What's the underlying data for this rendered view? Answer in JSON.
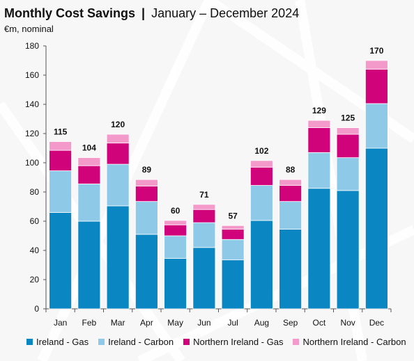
{
  "header": {
    "title_main": "Monthly Cost Savings",
    "title_separator": "|",
    "title_period": "January – December 2024",
    "unit": "€m, nominal"
  },
  "colors": {
    "ireland_gas": "#0a86c2",
    "ireland_carbon": "#8ecae8",
    "ni_gas": "#d0037a",
    "ni_carbon": "#f49acb"
  },
  "chart_data": {
    "type": "bar",
    "stacked": true,
    "title": "Monthly Cost Savings | January – December 2024",
    "ylabel": "€m, nominal",
    "xlabel": "",
    "ylim": [
      0,
      180
    ],
    "yticks": [
      0,
      20,
      40,
      60,
      80,
      100,
      120,
      140,
      160,
      180
    ],
    "grid": false,
    "legend_position": "bottom",
    "categories": [
      "Jan",
      "Feb",
      "Mar",
      "Apr",
      "May",
      "Jun",
      "Jul",
      "Aug",
      "Sep",
      "Oct",
      "Nov",
      "Dec"
    ],
    "series": [
      {
        "name": "Ireland - Gas",
        "color": "#0a86c2",
        "values": [
          66,
          60,
          70.5,
          51,
          34.5,
          42,
          33.5,
          60.5,
          54.5,
          82.5,
          81,
          110
        ]
      },
      {
        "name": "Ireland - Carbon",
        "color": "#8ecae8",
        "values": [
          28.5,
          25.5,
          28.5,
          22.5,
          15.5,
          17,
          14,
          24,
          19,
          24.5,
          22.5,
          30.5
        ]
      },
      {
        "name": "Northern Ireland - Gas",
        "color": "#d0037a",
        "values": [
          14,
          12.5,
          14.5,
          10.5,
          7.5,
          9,
          7,
          12.5,
          11,
          17,
          16,
          23.5
        ]
      },
      {
        "name": "Northern Ireland - Carbon",
        "color": "#f49acb",
        "values": [
          6,
          5.5,
          6,
          4.5,
          3,
          3.5,
          2.5,
          4.5,
          4,
          5,
          4.5,
          6
        ]
      }
    ],
    "totals": [
      115,
      104,
      120,
      89,
      60,
      71,
      57,
      102,
      88,
      129,
      125,
      170
    ]
  }
}
